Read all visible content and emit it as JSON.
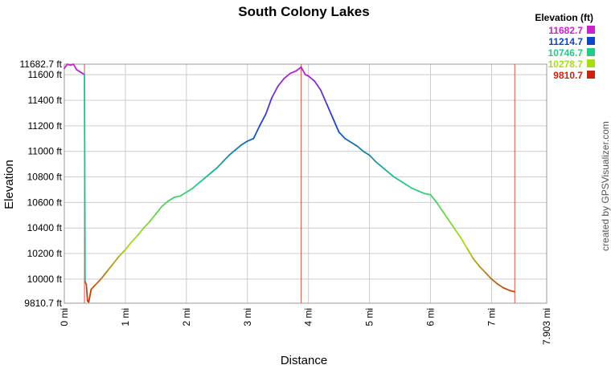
{
  "chart_data": {
    "type": "line",
    "title": "South Colony Lakes",
    "xlabel": "Distance",
    "ylabel": "Elevation",
    "credit": "created by GPSVisualizer.com",
    "xlim": [
      0,
      7.903
    ],
    "ylim": [
      9810.7,
      11682.7
    ],
    "x_ticks": [
      {
        "value": 0,
        "label": "0 mi"
      },
      {
        "value": 1,
        "label": "1 mi"
      },
      {
        "value": 2,
        "label": "2 mi"
      },
      {
        "value": 3,
        "label": "3 mi"
      },
      {
        "value": 4,
        "label": "4 mi"
      },
      {
        "value": 5,
        "label": "5 mi"
      },
      {
        "value": 6,
        "label": "6 mi"
      },
      {
        "value": 7,
        "label": "7 mi"
      },
      {
        "value": 7.903,
        "label": "7.903 mi"
      }
    ],
    "y_ticks": [
      {
        "value": 9810.7,
        "label": "9810.7 ft"
      },
      {
        "value": 10000,
        "label": "10000 ft"
      },
      {
        "value": 10200,
        "label": "10200 ft"
      },
      {
        "value": 10400,
        "label": "10400 ft"
      },
      {
        "value": 10600,
        "label": "10600 ft"
      },
      {
        "value": 10800,
        "label": "10800 ft"
      },
      {
        "value": 11000,
        "label": "11000 ft"
      },
      {
        "value": 11200,
        "label": "11200 ft"
      },
      {
        "value": 11400,
        "label": "11400 ft"
      },
      {
        "value": 11600,
        "label": "11600 ft"
      },
      {
        "value": 11682.7,
        "label": "11682.7 ft"
      }
    ],
    "grid": true,
    "legend": {
      "title": "Elevation (ft)",
      "placement": "top-right",
      "entries": [
        {
          "label": "11682.7",
          "color": "#cc22cc"
        },
        {
          "label": "11214.7",
          "color": "#1144cc"
        },
        {
          "label": "10746.7",
          "color": "#22cc88"
        },
        {
          "label": "10278.7",
          "color": "#aadd11"
        },
        {
          "label": "9810.7",
          "color": "#cc2211"
        }
      ]
    },
    "markers_x": [
      0.33,
      3.88,
      7.38
    ],
    "series": [
      {
        "x": [
          0.0,
          0.05,
          0.1,
          0.15,
          0.2,
          0.25,
          0.3,
          0.33,
          0.34,
          0.36,
          0.38,
          0.4,
          0.44,
          0.5,
          0.6,
          0.7,
          0.8,
          0.9,
          1.0,
          1.1,
          1.2,
          1.3,
          1.4,
          1.5,
          1.6,
          1.7,
          1.8,
          1.9,
          2.0,
          2.1,
          2.2,
          2.3,
          2.4,
          2.5,
          2.6,
          2.7,
          2.8,
          2.9,
          3.0,
          3.1,
          3.2,
          3.3,
          3.4,
          3.5,
          3.6,
          3.7,
          3.8,
          3.88,
          3.95,
          4.0,
          4.1,
          4.2,
          4.3,
          4.4,
          4.5,
          4.6,
          4.7,
          4.8,
          4.9,
          5.0,
          5.1,
          5.2,
          5.3,
          5.4,
          5.5,
          5.6,
          5.7,
          5.8,
          5.9,
          6.0,
          6.1,
          6.2,
          6.3,
          6.4,
          6.5,
          6.6,
          6.7,
          6.8,
          6.9,
          7.0,
          7.1,
          7.2,
          7.3,
          7.38
        ],
        "y": [
          11650,
          11682,
          11675,
          11682,
          11640,
          11625,
          11610,
          11600,
          9980,
          9960,
          9830,
          9820,
          9920,
          9950,
          10000,
          10060,
          10120,
          10180,
          10230,
          10290,
          10340,
          10400,
          10450,
          10510,
          10570,
          10610,
          10640,
          10650,
          10680,
          10710,
          10750,
          10790,
          10830,
          10870,
          10920,
          10970,
          11010,
          11050,
          11080,
          11100,
          11200,
          11290,
          11420,
          11510,
          11570,
          11610,
          11630,
          11660,
          11600,
          11590,
          11550,
          11480,
          11370,
          11260,
          11150,
          11100,
          11070,
          11040,
          11000,
          10970,
          10920,
          10880,
          10840,
          10800,
          10770,
          10740,
          10710,
          10690,
          10670,
          10660,
          10600,
          10530,
          10460,
          10390,
          10320,
          10240,
          10160,
          10100,
          10050,
          10000,
          9960,
          9930,
          9910,
          9900
        ]
      }
    ]
  }
}
